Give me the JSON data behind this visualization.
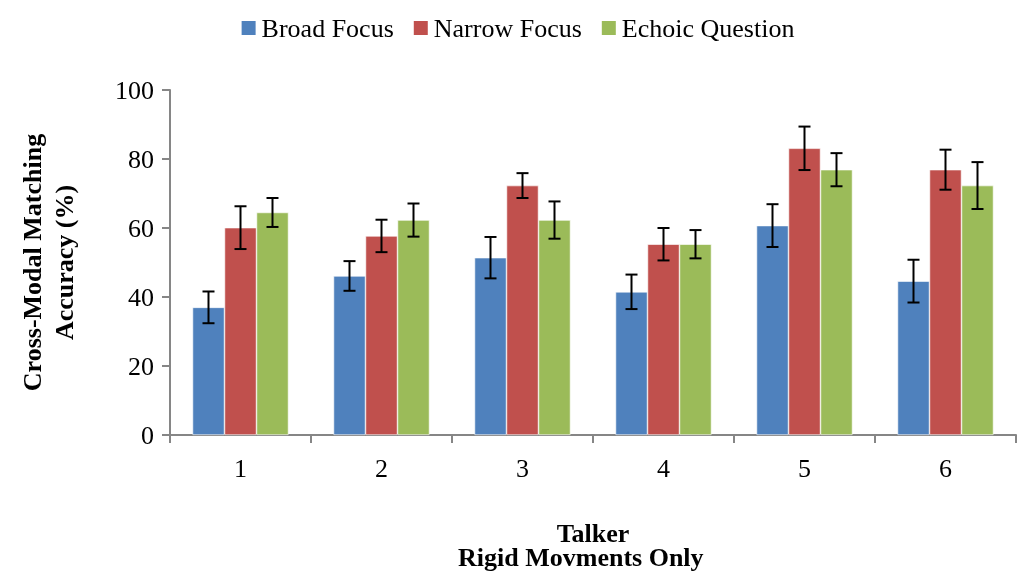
{
  "chart_data": {
    "type": "bar",
    "xlabel": "Talker",
    "ylabel": "Cross-Modal Matching\nAccuracy (%)",
    "annotations": [
      "Rigid Movments Only"
    ],
    "categories": [
      "1",
      "2",
      "3",
      "4",
      "5",
      "6"
    ],
    "series": [
      {
        "name": "Broad Focus",
        "color": "#4f81bd",
        "values": [
          37,
          46.1,
          51.4,
          41.5,
          60.7,
          44.6
        ],
        "errors": [
          4.6,
          4.3,
          6,
          5,
          6.2,
          6.2
        ]
      },
      {
        "name": "Narrow Focus",
        "color": "#c0504d",
        "values": [
          60.1,
          57.7,
          72.3,
          55.3,
          83.1,
          76.9
        ],
        "errors": [
          6.2,
          4.7,
          3.6,
          4.7,
          6.3,
          5.8
        ]
      },
      {
        "name": "Echoic Question",
        "color": "#9bbb59",
        "values": [
          64.5,
          62.3,
          62.3,
          55.3,
          76.9,
          72.3
        ],
        "errors": [
          4.2,
          4.8,
          5.4,
          4.1,
          4.8,
          6.8
        ]
      }
    ],
    "ylim": [
      0,
      100
    ],
    "yticks": [
      0,
      20,
      40,
      60,
      80,
      100
    ],
    "grid": false,
    "legend": "top"
  }
}
